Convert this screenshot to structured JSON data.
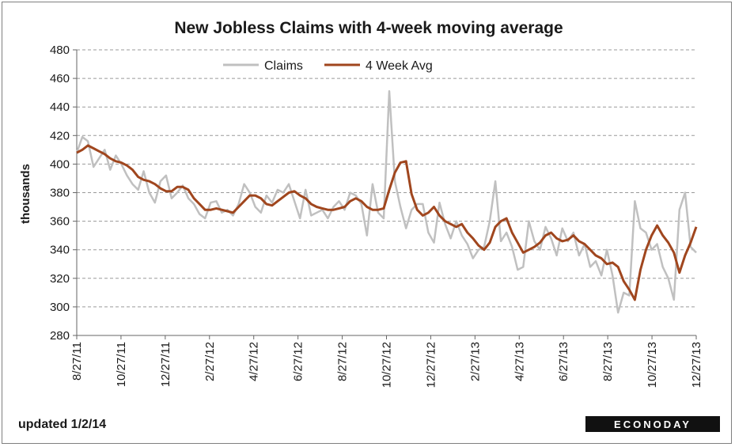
{
  "chart_data": {
    "type": "line",
    "title": "New Jobless Claims with 4-week moving average",
    "xlabel": "",
    "ylabel": "thousands",
    "ylim": [
      280,
      480
    ],
    "yticks": [
      280,
      300,
      320,
      340,
      360,
      380,
      400,
      420,
      440,
      460,
      480
    ],
    "xtick_labels": [
      "8/27/11",
      "10/27/11",
      "12/27/11",
      "2/27/12",
      "4/27/12",
      "6/27/12",
      "8/27/12",
      "10/27/12",
      "12/27/12",
      "2/27/13",
      "4/27/13",
      "6/27/13",
      "8/27/13",
      "10/27/13",
      "12/27/13"
    ],
    "grid": "horizontal dashed",
    "legend": "top-center",
    "series": [
      {
        "name": "Claims",
        "color": "#c0c0c0",
        "values": [
          408,
          419,
          416,
          398,
          404,
          410,
          396,
          406,
          400,
          392,
          386,
          382,
          395,
          380,
          373,
          388,
          392,
          376,
          380,
          385,
          376,
          372,
          365,
          362,
          373,
          374,
          366,
          368,
          364,
          372,
          386,
          380,
          370,
          366,
          378,
          373,
          382,
          380,
          386,
          374,
          362,
          382,
          364,
          366,
          368,
          362,
          370,
          374,
          368,
          380,
          378,
          372,
          350,
          386,
          366,
          362,
          451,
          388,
          370,
          355,
          368,
          372,
          372,
          352,
          345,
          373,
          358,
          348,
          360,
          350,
          344,
          334,
          340,
          342,
          360,
          388,
          346,
          352,
          342,
          326,
          328,
          360,
          346,
          340,
          356,
          348,
          336,
          355,
          346,
          352,
          336,
          344,
          328,
          332,
          322,
          340,
          322,
          296,
          310,
          308,
          374,
          355,
          352,
          340,
          344,
          328,
          320,
          305,
          368,
          380,
          342,
          338
        ]
      },
      {
        "name": "4 Week Avg",
        "color": "#a0461e",
        "values": [
          408,
          410,
          413,
          411,
          409,
          407,
          404,
          402,
          401,
          399,
          396,
          391,
          389,
          388,
          386,
          383,
          381,
          381,
          384,
          384,
          382,
          376,
          372,
          368,
          368,
          369,
          368,
          367,
          366,
          370,
          374,
          378,
          378,
          376,
          372,
          371,
          374,
          377,
          380,
          381,
          378,
          376,
          372,
          370,
          369,
          368,
          368,
          369,
          370,
          374,
          376,
          374,
          370,
          368,
          368,
          369,
          382,
          394,
          401,
          402,
          379,
          368,
          364,
          366,
          370,
          364,
          360,
          358,
          356,
          358,
          352,
          348,
          343,
          340,
          345,
          356,
          360,
          362,
          352,
          345,
          338,
          340,
          342,
          345,
          350,
          352,
          348,
          346,
          347,
          350,
          346,
          344,
          340,
          336,
          334,
          330,
          331,
          328,
          318,
          312,
          305,
          326,
          340,
          350,
          357,
          350,
          345,
          338,
          324,
          336,
          345,
          356
        ]
      }
    ]
  },
  "footer": {
    "updated": "updated 1/2/14",
    "logo": "ECONODAY"
  }
}
